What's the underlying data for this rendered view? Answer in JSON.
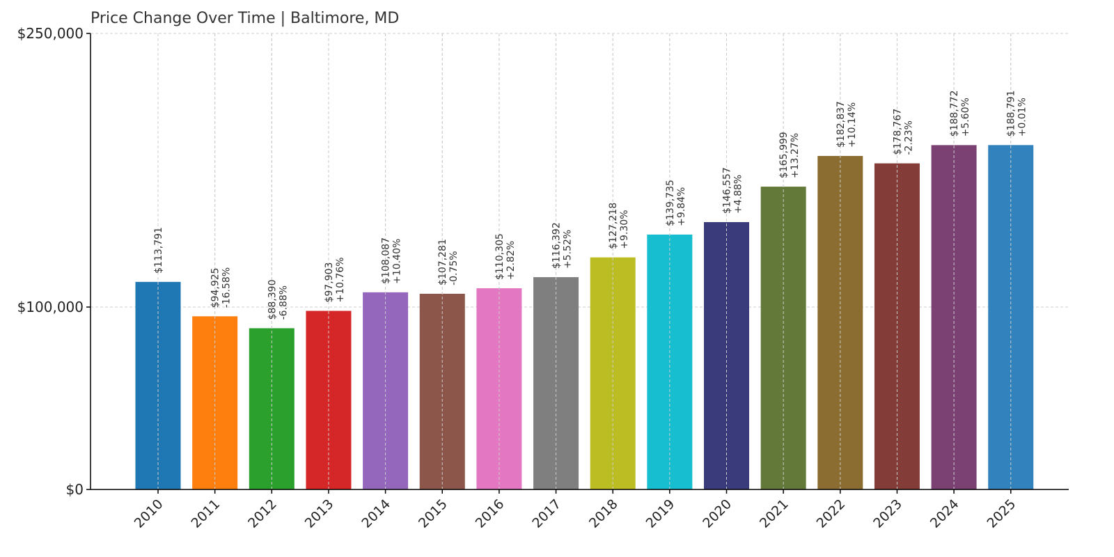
{
  "title": "Price Change Over Time | Baltimore, MD",
  "chart_data": {
    "type": "bar",
    "title": "Price Change Over Time | Baltimore, MD",
    "xlabel": "",
    "ylabel": "",
    "ylim": [
      0,
      250000
    ],
    "yaxis_scale": "piecewise-linear",
    "grid": true,
    "legend": "none",
    "yticks": [
      {
        "value": 0,
        "label": "$0"
      },
      {
        "value": 100000,
        "label": "$100,000"
      },
      {
        "value": 250000,
        "label": "$250,000"
      }
    ],
    "categories": [
      "2010",
      "2011",
      "2012",
      "2013",
      "2014",
      "2015",
      "2016",
      "2017",
      "2018",
      "2019",
      "2020",
      "2021",
      "2022",
      "2023",
      "2024",
      "2025"
    ],
    "values": [
      113791,
      94925,
      88390,
      97903,
      108087,
      107281,
      110305,
      116392,
      127218,
      139735,
      146557,
      165999,
      182837,
      178767,
      188772,
      188791
    ],
    "value_labels": [
      "$113,791",
      "$94,925",
      "$88,390",
      "$97,903",
      "$108,087",
      "$107,281",
      "$110,305",
      "$116,392",
      "$127,218",
      "$139,735",
      "$146,557",
      "$165,999",
      "$182,837",
      "$178,767",
      "$188,772",
      "$188,791"
    ],
    "change_labels": [
      "",
      "-16.58%",
      "-6.88%",
      "+10.76%",
      "+10.40%",
      "-0.75%",
      "+2.82%",
      "+5.52%",
      "+9.30%",
      "+9.84%",
      "+4.88%",
      "+13.27%",
      "+10.14%",
      "-2.23%",
      "+5.60%",
      "+0.01%"
    ],
    "colors": [
      "#1f77b4",
      "#ff7f0e",
      "#2ca02c",
      "#d62728",
      "#9467bd",
      "#8c564b",
      "#e377c2",
      "#7f7f7f",
      "#bcbd22",
      "#17becf",
      "#393b7a",
      "#637939",
      "#8c6d31",
      "#843c39",
      "#7b4173",
      "#3182bd"
    ]
  }
}
